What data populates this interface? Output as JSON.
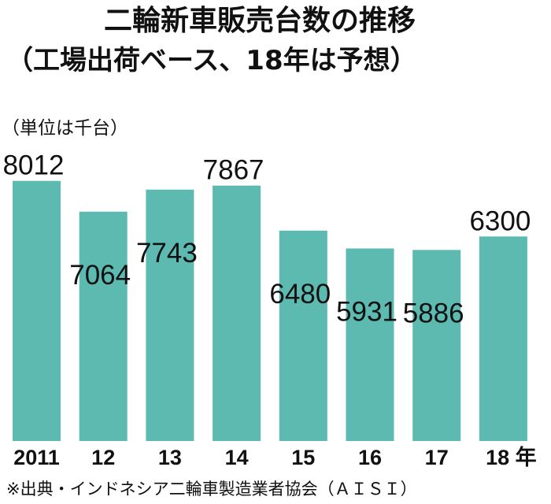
{
  "chart_data": {
    "type": "bar",
    "title": "二輪新車販売台数の推移",
    "subtitle": "（工場出荷ベース、18年は予想）",
    "unit": "（単位は千台）",
    "categories": [
      "2011",
      "12",
      "13",
      "14",
      "15",
      "16",
      "17",
      "18 年"
    ],
    "values": [
      8012,
      7064,
      7743,
      7867,
      6480,
      5931,
      5886,
      6300
    ],
    "value_labels": [
      "8012",
      "7064",
      "7743",
      "7867",
      "6480",
      "5931",
      "5886",
      "6300"
    ],
    "ylim": [
      0,
      8200
    ],
    "grid": false,
    "legend": "none",
    "bar_color": "#5cbab1",
    "source": "※出典・インドネシア二輪車製造業者協会（ＡＩＳＩ）"
  }
}
